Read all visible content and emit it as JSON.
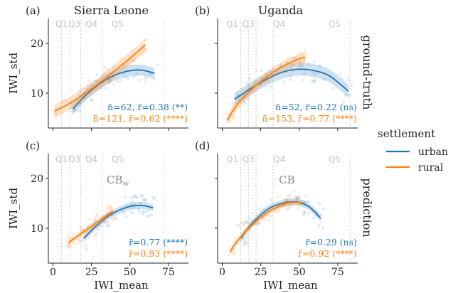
{
  "figure": {
    "legend": {
      "title": "settlement",
      "entries": [
        {
          "name": "urban",
          "color": "#1f77b4"
        },
        {
          "name": "rural",
          "color": "#ff7f0e"
        }
      ],
      "placement": "right"
    },
    "row_labels": [
      "ground-truth",
      "prediction"
    ]
  },
  "chart_data": [
    {
      "type": "scatter",
      "panel_label": "(a)",
      "title": "Sierra Leone",
      "tag": "",
      "xlabel": "",
      "ylabel": "IWI_std",
      "xlim": [
        -3,
        88
      ],
      "ylim": [
        3,
        25
      ],
      "x_ticks": [
        0,
        25,
        50,
        75
      ],
      "x_tick_labels": [
        "",
        "",
        "",
        ""
      ],
      "y_ticks": [
        10,
        20
      ],
      "y_tick_labels": [
        "10",
        "20"
      ],
      "quantiles": [
        {
          "label": "Q1",
          "x": 5.5
        },
        {
          "label": "Q3",
          "x": 14
        },
        {
          "label": "Q4",
          "x": 25
        },
        {
          "label": "Q5",
          "x": 42
        }
      ],
      "quantile_boundaries": [
        5.5,
        11,
        18,
        32,
        72
      ],
      "series": [
        {
          "name": "urban",
          "color": "#1f77b4",
          "fit": {
            "x": [
              13,
              20,
              30,
              40,
              50,
              58,
              66
            ],
            "y": [
              6.8,
              9.2,
              11.8,
              13.6,
              14.5,
              14.6,
              14.0
            ]
          },
          "band_hw": 1.1,
          "annotation": "n̄=62,  r̄=0.38 (**)"
        },
        {
          "name": "rural",
          "color": "#ff7f0e",
          "fit": {
            "x": [
              1,
              10,
              20,
              30,
              40,
              50,
              60
            ],
            "y": [
              6.4,
              7.8,
              9.8,
              12.0,
              14.5,
              17.0,
              19.7
            ]
          },
          "band_hw": 1.3,
          "annotation": "n̄=121,  r̄=0.62 (****)"
        }
      ]
    },
    {
      "type": "scatter",
      "panel_label": "(b)",
      "title": "Uganda",
      "tag": "",
      "xlabel": "",
      "ylabel": "",
      "xlim": [
        -3,
        88
      ],
      "ylim": [
        3,
        25
      ],
      "x_ticks": [
        0,
        25,
        50,
        75
      ],
      "x_tick_labels": [
        "",
        "",
        "",
        ""
      ],
      "y_ticks": [
        10,
        20
      ],
      "y_tick_labels": [
        "",
        ""
      ],
      "quantiles": [
        {
          "label": "Q1",
          "x": 6.5
        },
        {
          "label": "Q3",
          "x": 17
        },
        {
          "label": "Q4",
          "x": 37
        },
        {
          "label": "Q5",
          "x": 73
        }
      ],
      "quantile_boundaries": [
        12,
        17,
        22,
        33,
        83
      ],
      "series": [
        {
          "name": "urban",
          "color": "#1f77b4",
          "fit": {
            "x": [
              8,
              20,
              30,
              40,
              50,
              60,
              70,
              82
            ],
            "y": [
              8.8,
              11.2,
              13.0,
              14.3,
              14.8,
              14.5,
              13.4,
              10.4
            ]
          },
          "band_hw": 1.3,
          "annotation": "n̄=52,  r̄=0.22 (ns)"
        },
        {
          "name": "rural",
          "color": "#ff7f0e",
          "fit": {
            "x": [
              3,
              10,
              20,
              30,
              40,
              50,
              54
            ],
            "y": [
              4.5,
              7.8,
              11.0,
              13.5,
              15.5,
              16.9,
              17.2
            ]
          },
          "band_hw": 1.0,
          "annotation": "n̄=153,  r̄=0.77 (****)"
        }
      ]
    },
    {
      "type": "scatter",
      "panel_label": "(c)",
      "title": "",
      "tag": "CB",
      "tag_sub": "w",
      "xlabel": "IWI_mean",
      "ylabel": "IWI_std",
      "xlim": [
        -3,
        88
      ],
      "ylim": [
        3,
        25
      ],
      "x_ticks": [
        0,
        25,
        50,
        75
      ],
      "x_tick_labels": [
        "0",
        "25",
        "50",
        "75"
      ],
      "y_ticks": [
        10,
        20
      ],
      "y_tick_labels": [
        "10",
        "20"
      ],
      "quantiles": [
        {
          "label": "Q1",
          "x": 5.5
        },
        {
          "label": "Q3",
          "x": 14
        },
        {
          "label": "Q4",
          "x": 25
        },
        {
          "label": "Q5",
          "x": 42
        }
      ],
      "quantile_boundaries": [
        5.5,
        11,
        18,
        32,
        72
      ],
      "series": [
        {
          "name": "urban",
          "color": "#1f77b4",
          "fit": {
            "x": [
              20,
              30,
              40,
              50,
              56,
              60,
              65
            ],
            "y": [
              8.0,
              11.0,
              13.2,
              14.4,
              14.6,
              14.5,
              14.1
            ]
          },
          "band_hw": 0.7,
          "annotation": "r̄=0.77 (****)"
        },
        {
          "name": "rural",
          "color": "#ff7f0e",
          "fit": {
            "x": [
              10,
              15,
              20,
              25,
              30,
              35,
              39
            ],
            "y": [
              7.1,
              8.2,
              9.3,
              10.4,
              11.5,
              12.6,
              13.4
            ]
          },
          "band_hw": 0.6,
          "annotation": "r̄=0.93 (****)"
        }
      ]
    },
    {
      "type": "scatter",
      "panel_label": "(d)",
      "title": "",
      "tag": "CB",
      "tag_sub": "",
      "xlabel": "IWI_mean",
      "ylabel": "",
      "xlim": [
        -3,
        88
      ],
      "ylim": [
        3,
        25
      ],
      "x_ticks": [
        0,
        25,
        50,
        75
      ],
      "x_tick_labels": [
        "0",
        "25",
        "50",
        "75"
      ],
      "y_ticks": [
        10,
        20
      ],
      "y_tick_labels": [
        "",
        ""
      ],
      "quantiles": [
        {
          "label": "Q1",
          "x": 6.5
        },
        {
          "label": "Q3",
          "x": 17
        },
        {
          "label": "Q4",
          "x": 37
        },
        {
          "label": "Q5",
          "x": 73
        }
      ],
      "quantile_boundaries": [
        12,
        17,
        22,
        33,
        83
      ],
      "series": [
        {
          "name": "urban",
          "color": "#1f77b4",
          "fit": {
            "x": [
              12,
              20,
              30,
              40,
              46,
              50,
              57,
              64
            ],
            "y": [
              8.0,
              11.2,
              13.9,
              15.1,
              15.3,
              15.2,
              14.2,
              12.0
            ]
          },
          "band_hw": 0.7,
          "annotation": "r̄=0.29 (ns)"
        },
        {
          "name": "rural",
          "color": "#ff7f0e",
          "fit": {
            "x": [
              5,
              10,
              20,
              30,
              40,
              46,
              52
            ],
            "y": [
              5.2,
              7.5,
              10.9,
              13.3,
              14.8,
              15.2,
              15.2
            ]
          },
          "band_hw": 0.6,
          "annotation": "r̄=0.92 (****)"
        }
      ]
    }
  ]
}
